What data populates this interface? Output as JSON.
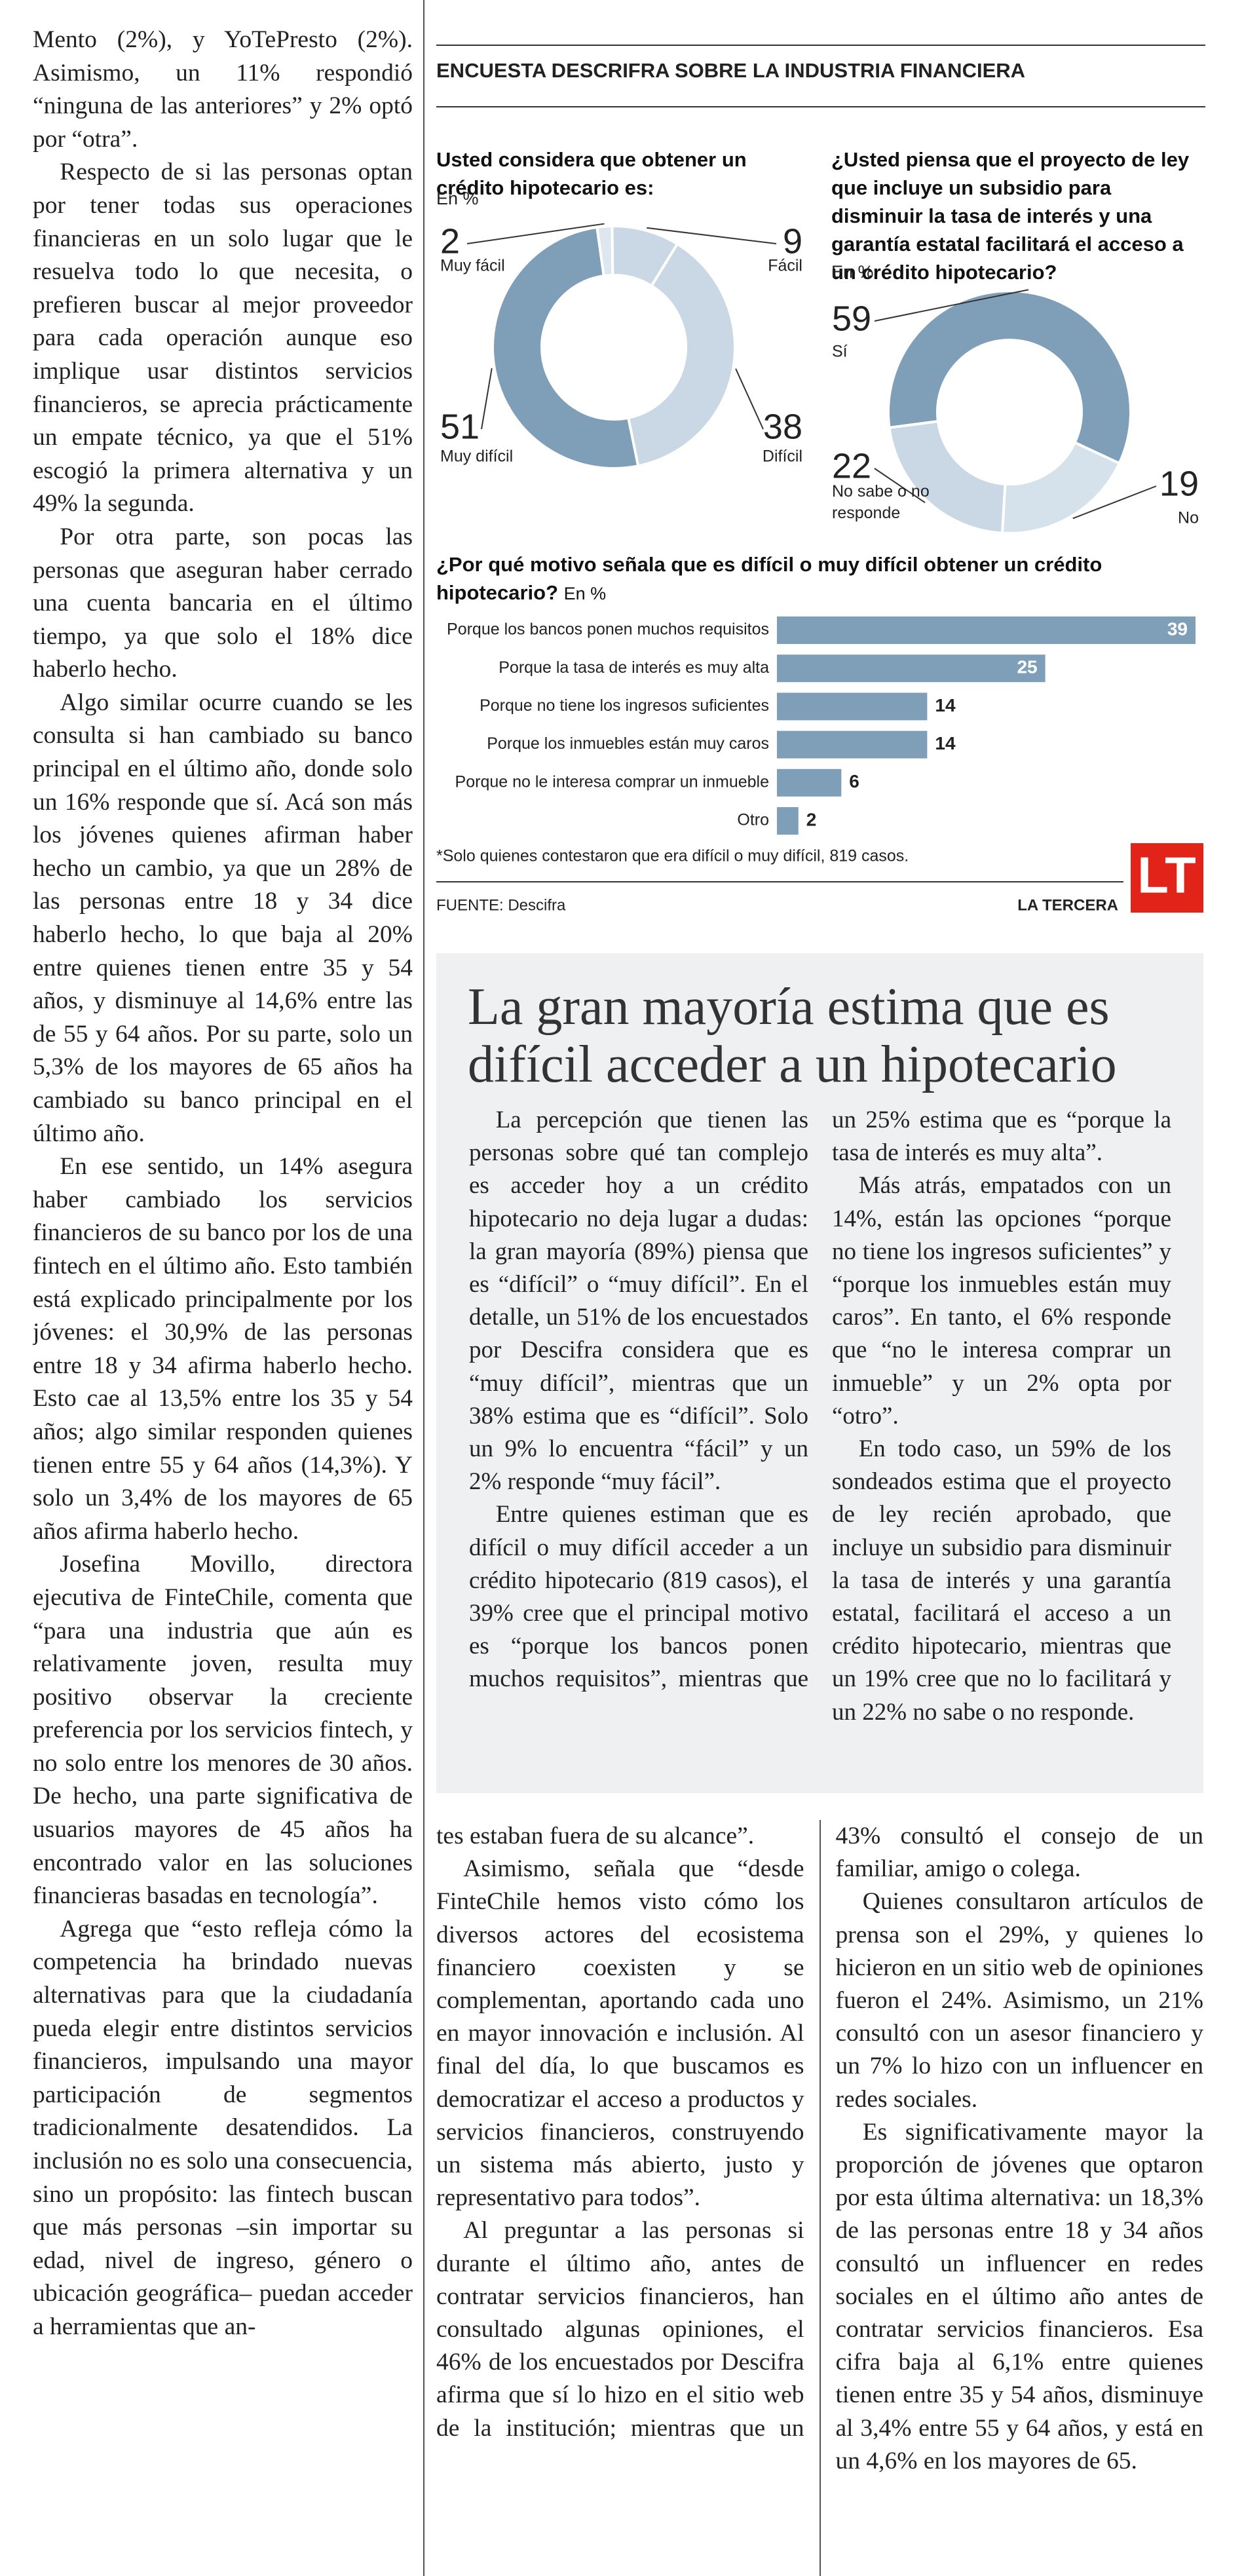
{
  "left_column": {
    "paragraphs": [
      "Mento (2%), y YoTePresto (2%). Asimismo, un 11% respondió “ninguna de las anteriores” y 2% optó por “otra”.",
      "Respecto de si las personas optan por tener todas sus operaciones financieras en un solo lugar que le resuelva todo lo que necesita, o prefieren buscar al mejor proveedor para cada operación aunque eso implique usar distintos servicios financieros, se aprecia prácticamente un empate técnico, ya que el 51% escogió la primera alternativa y un 49% la segunda.",
      "Por otra parte, son pocas las personas que aseguran haber cerrado una cuenta bancaria en el último tiempo, ya que solo el 18% dice haberlo hecho.",
      "Algo similar ocurre cuando se les consulta si han cambiado su banco principal en el último año, donde solo un 16% responde que sí. Acá son más los jóvenes quienes afirman haber hecho un cambio, ya que un 28% de las personas entre 18 y 34 dice haberlo hecho, lo que baja al 20% entre quienes tienen entre 35 y 54 años, y disminuye al 14,6% entre las de 55 y 64 años. Por su parte, solo un 5,3% de los mayores de 65 años ha cambiado su banco principal en el último año.",
      "En ese sentido, un 14% asegura haber cambiado los servicios financieros de su banco por los de una fintech en el último año. Esto también está explicado principalmente por los jóvenes: el 30,9% de las personas entre 18 y 34 afirma haberlo hecho. Esto cae al 13,5% entre los 35 y 54 años; algo similar responden quienes tienen entre 55 y 64 años (14,3%). Y solo un 3,4% de los mayores de 65 años afirma haberlo hecho.",
      "Josefina Movillo, directora ejecutiva de FinteChile, comenta que “para una industria que aún es relativamente joven, resulta muy positivo observar la creciente preferencia por los servicios fintech, y no solo entre los menores de 30 años. De hecho, una parte significativa de usuarios mayores de 45 años ha encontrado valor en las soluciones financieras basadas en tecnología”.",
      "Agrega que “esto refleja cómo la competencia ha brindado nuevas alternativas para que la ciudadanía pueda elegir entre distintos servicios financieros, impulsando una mayor participación de segmentos tradicionalmente desatendidos. La inclusión no es solo una consecuencia, sino un propósito: las fintech buscan que más personas –sin importar su edad, nivel de ingreso, género o ubicación geográfica– puedan acceder a herramientas que an-"
    ]
  },
  "infographic": {
    "header": "ENCUESTA DESCRIFRA SOBRE LA INDUSTRIA FINANCIERA",
    "footnote": "*Solo quienes contestaron que era difícil o muy difícil, 819 casos.",
    "source": "FUENTE: Descifra",
    "brand": "LA TERCERA",
    "logo": "LT"
  },
  "chart_data": [
    {
      "type": "donut",
      "title": "Usted considera que obtener un crédito hipotecario es:",
      "subtitle": "En %",
      "categories": [
        "Muy fácil",
        "Fácil",
        "Difícil",
        "Muy difícil"
      ],
      "values": [
        2,
        9,
        38,
        51
      ],
      "colors": [
        "#dde7ef",
        "#c9d8e4",
        "#c9d8e4",
        "#7f9fb9"
      ]
    },
    {
      "type": "donut",
      "title": "¿Usted piensa que el proyecto de ley que incluye un subsidio para disminuir la tasa de interés y una garantía estatal facilitará el acceso a un crédito hipotecario?",
      "subtitle": "En %",
      "categories": [
        "Sí",
        "No sabe o no responde",
        "No"
      ],
      "values": [
        59,
        22,
        19
      ],
      "colors": [
        "#7f9fb9",
        "#c9d8e4",
        "#d6e2eb"
      ]
    },
    {
      "type": "bar",
      "title": "¿Por qué motivo señala que es difícil o muy difícil obtener un crédito hipotecario?",
      "subtitle": "En %",
      "categories": [
        "Porque los bancos ponen muchos requisitos",
        "Porque la tasa de interés es muy alta",
        "Porque no tiene los ingresos suficientes",
        "Porque los inmuebles están muy caros",
        "Porque no le interesa comprar un inmueble",
        "Otro"
      ],
      "values": [
        39,
        25,
        14,
        14,
        6,
        2
      ],
      "color": "#7f9fb9"
    }
  ],
  "feature_box": {
    "headline": "La gran mayoría estima que es difícil acceder a un hipotecario",
    "paragraphs": [
      "La percepción que tienen las personas sobre qué tan complejo es acceder hoy a un crédito hipotecario no deja lugar a dudas: la gran mayoría (89%) piensa que es “difícil” o “muy difícil”. En el detalle, un 51% de los encuestados por Descifra considera que es “muy difícil”, mientras que un 38% estima que es “difícil”. Solo un 9% lo encuentra “fácil” y un 2% responde “muy fácil”.",
      "Entre quienes estiman que es difícil o muy difícil acceder a un crédito hipotecario (819 casos), el 39% cree que el principal motivo es “porque los bancos ponen muchos requisitos”, mientras que un 25% estima que es “porque la tasa de interés es muy alta”.",
      "Más atrás, empatados con un 14%, están las opciones “porque no tiene los ingresos suficientes” y “porque los inmuebles están muy caros”. En tanto, el 6% responde que “no le interesa comprar un inmueble” y un 2% opta por “otro”.",
      "En todo caso, un 59% de los sondeados estima que el proyecto de ley recién aprobado, que incluye un subsidio para disminuir la tasa de interés y una garantía estatal, facilitará el acceso a un crédito hipotecario, mientras que un 19% cree que no lo facilitará y un 22% no sabe o no responde."
    ]
  },
  "bottom_columns": {
    "paragraphs": [
      "tes estaban fuera de su alcance”.",
      "Asimismo, señala que “desde FinteChile hemos visto cómo los diversos actores del ecosistema financiero coexisten y se complementan, aportando cada uno en mayor innovación e inclusión. Al final del día, lo que buscamos es democratizar el acceso a productos y servicios financieros, construyendo un sistema más abierto, justo y representativo para todos”.",
      "Al preguntar a las personas si durante el último año, antes de contratar servicios financieros, han consultado algunas opiniones, el 46% de los encuestados por Descifra afirma que sí lo hizo en el sitio web de la institución; mientras que un 43% consultó el consejo de un familiar, amigo o colega.",
      "Quienes consultaron artículos de prensa son el 29%, y quienes lo hicieron en un sitio web de opiniones fueron el 24%. Asimismo, un 21% consultó con un asesor financiero y un 7% lo hizo con un influencer en redes sociales.",
      "Es significativamente mayor la proporción de jóvenes que optaron por esta última alternativa: un 18,3% de las personas entre 18 y 34 años consultó un influencer en redes sociales en el último año antes de contratar servicios financieros. Esa cifra baja al 6,1% entre quienes tienen entre 35 y 54 años, disminuye al 3,4% entre 55 y 64 años, y está en un 4,6% en los mayores de 65."
    ]
  }
}
